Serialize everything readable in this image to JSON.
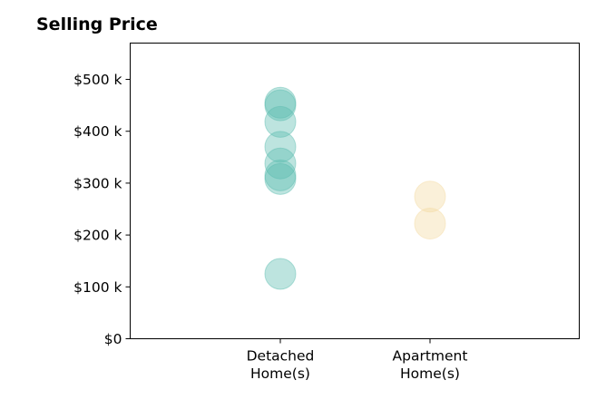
{
  "chart_data": {
    "type": "scatter",
    "title": "Selling Price",
    "xlabel": "",
    "ylabel": "",
    "categories": [
      "Detached\nHome(s)",
      "Apartment\nHome(s)"
    ],
    "ylim": [
      0,
      570000
    ],
    "yticks": [
      0,
      100000,
      200000,
      300000,
      400000,
      500000
    ],
    "ytick_labels": [
      "$0",
      "$100 k",
      "$200 k",
      "$300 k",
      "$400 k",
      "$500 k"
    ],
    "grid": false,
    "series": [
      {
        "category": "Detached\nHome(s)",
        "color": "#5bbcb0",
        "values": [
          125000,
          308000,
          315000,
          338000,
          370000,
          418000,
          450000,
          455000
        ]
      },
      {
        "category": "Apartment\nHome(s)",
        "color": "#f3d9a0",
        "values": [
          222000,
          274000
        ]
      }
    ]
  }
}
